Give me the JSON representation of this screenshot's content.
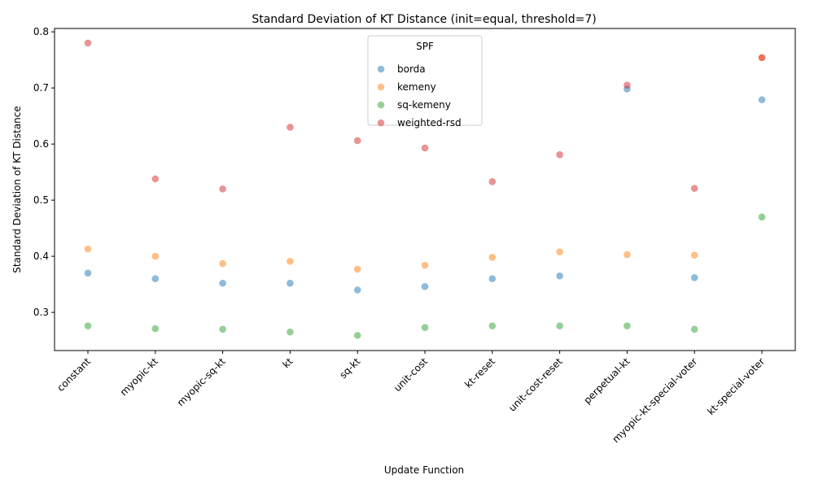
{
  "chart_data": {
    "type": "scatter",
    "title": "Standard Deviation of KT Distance (init=equal, threshold=7)",
    "xlabel": "Update Function",
    "ylabel": "Standard Deviation of KT Distance",
    "categories": [
      "constant",
      "myopic-kt",
      "myopic-sq-kt",
      "kt",
      "sq-kt",
      "unit-cost",
      "kt-reset",
      "unit-cost-reset",
      "perpetual-kt",
      "myopic-kt-special-voter",
      "kt-special-voter"
    ],
    "ylim": [
      0.232,
      0.806
    ],
    "yticks": [
      0.3,
      0.4,
      0.5,
      0.6,
      0.7,
      0.8
    ],
    "ytick_labels": [
      "0.3",
      "0.4",
      "0.5",
      "0.6",
      "0.7",
      "0.8"
    ],
    "grid": false,
    "legend": {
      "title": "SPF",
      "placement": "upper center"
    },
    "series": [
      {
        "name": "borda",
        "color": "#1f77b4",
        "values": [
          0.37,
          0.36,
          0.352,
          0.352,
          0.34,
          0.346,
          0.36,
          0.365,
          0.698,
          0.362,
          0.679
        ]
      },
      {
        "name": "kemeny",
        "color": "#ff7f0e",
        "values": [
          0.413,
          0.4,
          0.387,
          0.391,
          0.377,
          0.384,
          0.398,
          0.408,
          0.403,
          0.402,
          0.754
        ]
      },
      {
        "name": "sq-kemeny",
        "color": "#2ca02c",
        "values": [
          0.276,
          0.271,
          0.27,
          0.265,
          0.259,
          0.273,
          0.276,
          0.276,
          0.276,
          0.27,
          0.47
        ]
      },
      {
        "name": "weighted-rsd",
        "color": "#d62728",
        "values": [
          0.78,
          0.538,
          0.52,
          0.63,
          0.606,
          0.593,
          0.533,
          0.581,
          0.705,
          0.521,
          0.754
        ]
      }
    ]
  }
}
